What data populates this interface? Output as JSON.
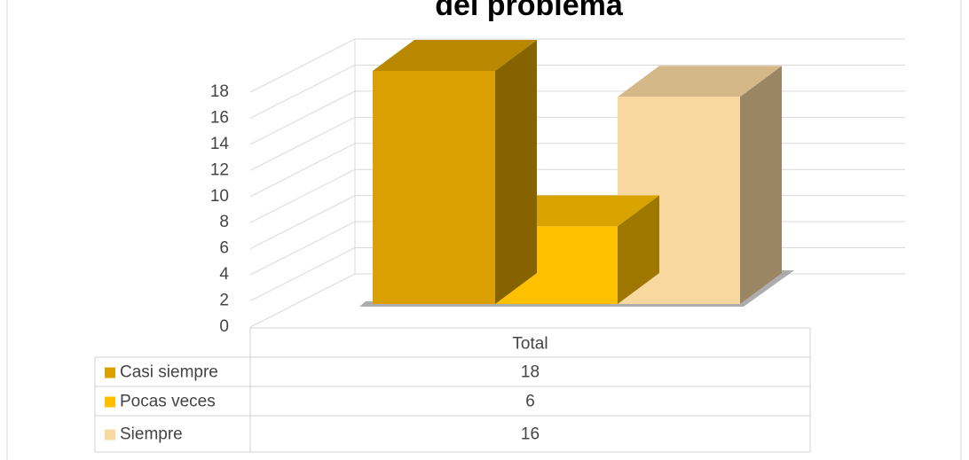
{
  "chart_data": {
    "type": "bar3d",
    "title": "del problema",
    "categories": [
      "Total"
    ],
    "series": [
      {
        "name": "Casi siempre",
        "color": "#d9a000",
        "values": [
          18
        ]
      },
      {
        "name": "Pocas veces",
        "color": "#ffc000",
        "values": [
          6
        ]
      },
      {
        "name": "Siempre",
        "color": "#f9d8a0",
        "values": [
          16
        ]
      }
    ],
    "ylim": [
      0,
      18
    ],
    "yticks": [
      0,
      2,
      4,
      6,
      8,
      10,
      12,
      14,
      16,
      18
    ],
    "grid": true,
    "legend": "table"
  }
}
